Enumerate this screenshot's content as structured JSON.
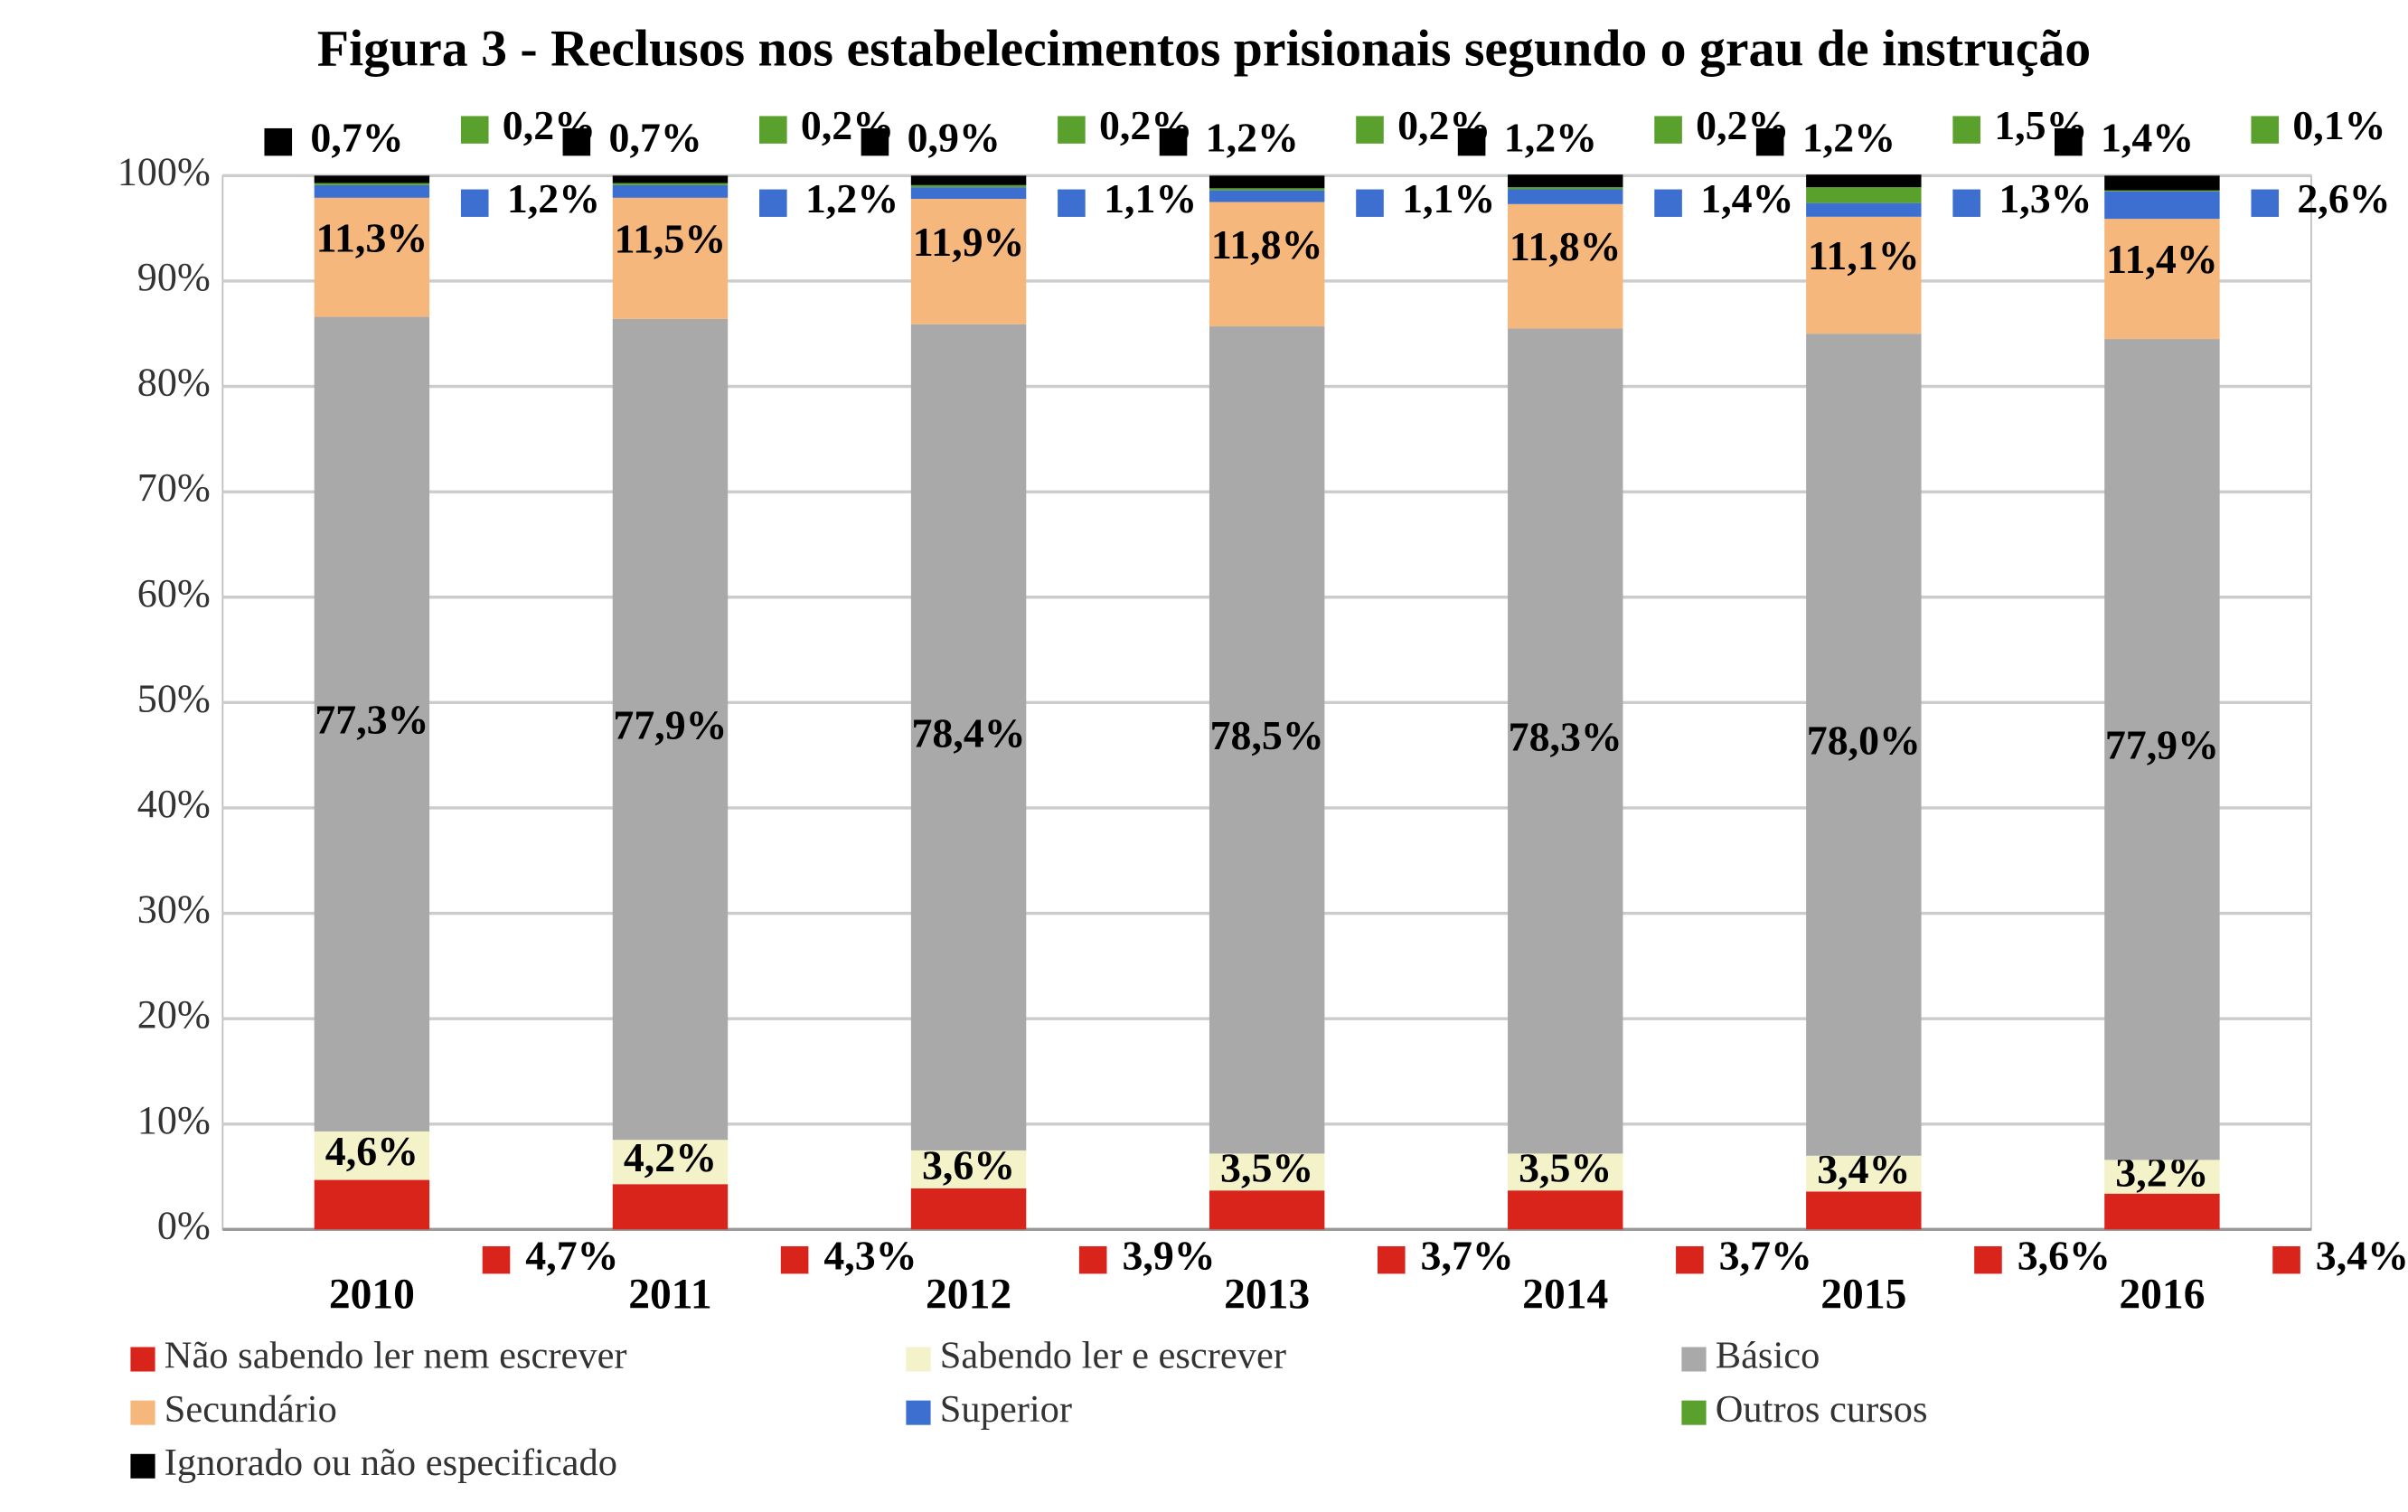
{
  "chart_data": {
    "type": "stacked_bar",
    "title": "Figura 3 - Reclusos nos estabelecimentos prisionais segundo o grau de instrução",
    "categories": [
      "2010",
      "2011",
      "2012",
      "2013",
      "2014",
      "2015",
      "2016"
    ],
    "ylim": [
      0,
      100
    ],
    "yticks": [
      {
        "value": 0,
        "label": "0%"
      },
      {
        "value": 10,
        "label": "10%"
      },
      {
        "value": 20,
        "label": "20%"
      },
      {
        "value": 30,
        "label": "30%"
      },
      {
        "value": 40,
        "label": "40%"
      },
      {
        "value": 50,
        "label": "50%"
      },
      {
        "value": 60,
        "label": "60%"
      },
      {
        "value": 70,
        "label": "70%"
      },
      {
        "value": 80,
        "label": "80%"
      },
      {
        "value": 90,
        "label": "90%"
      },
      {
        "value": 100,
        "label": "100%"
      }
    ],
    "grid": true,
    "series": [
      {
        "name": "Não sabendo ler nem escrever",
        "color": "#d9241c",
        "values": [
          4.7,
          4.3,
          3.9,
          3.7,
          3.7,
          3.6,
          3.4
        ],
        "value_labels": [
          "4,7%",
          "4,3%",
          "3,9%",
          "3,7%",
          "3,7%",
          "3,6%",
          "3,4%"
        ]
      },
      {
        "name": "Sabendo ler e escrever",
        "color": "#f3f2c8",
        "values": [
          4.6,
          4.2,
          3.6,
          3.5,
          3.5,
          3.4,
          3.2
        ],
        "value_labels": [
          "4,6%",
          "4,2%",
          "3,6%",
          "3,5%",
          "3,5%",
          "3,4%",
          "3,2%"
        ]
      },
      {
        "name": "Básico",
        "color": "#a9a9a9",
        "values": [
          77.3,
          77.9,
          78.4,
          78.5,
          78.3,
          78.0,
          77.9
        ],
        "value_labels": [
          "77,3%",
          "77,9%",
          "78,4%",
          "78,5%",
          "78,3%",
          "78,0%",
          "77,9%"
        ]
      },
      {
        "name": "Secundário",
        "color": "#f5b77c",
        "values": [
          11.3,
          11.5,
          11.9,
          11.8,
          11.8,
          11.1,
          11.4
        ],
        "value_labels": [
          "11,3%",
          "11,5%",
          "11,9%",
          "11,8%",
          "11,8%",
          "11,1%",
          "11,4%"
        ]
      },
      {
        "name": "Superior",
        "color": "#3c6fd0",
        "values": [
          1.2,
          1.2,
          1.1,
          1.1,
          1.4,
          1.3,
          2.6
        ],
        "value_labels": [
          "1,2%",
          "1,2%",
          "1,1%",
          "1,1%",
          "1,4%",
          "1,3%",
          "2,6%"
        ]
      },
      {
        "name": "Outros cursos",
        "color": "#5aa02c",
        "values": [
          0.2,
          0.2,
          0.2,
          0.2,
          0.2,
          1.5,
          0.1
        ],
        "value_labels": [
          "0,2%",
          "0,2%",
          "0,2%",
          "0,2%",
          "0,2%",
          "1,5%",
          "0,1%"
        ]
      },
      {
        "name": "Ignorado ou não especificado",
        "color": "#000000",
        "values": [
          0.7,
          0.7,
          0.9,
          1.2,
          1.2,
          1.2,
          1.4
        ],
        "value_labels": [
          "0,7%",
          "0,7%",
          "0,9%",
          "1,2%",
          "1,2%",
          "1,2%",
          "1,4%"
        ]
      }
    ]
  }
}
